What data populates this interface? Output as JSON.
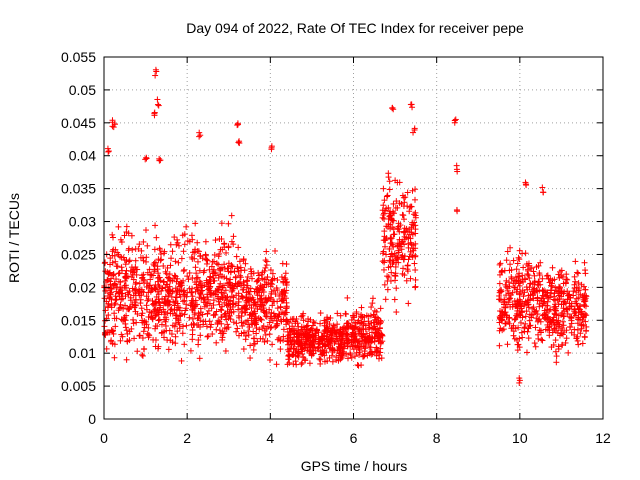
{
  "chart_data": {
    "type": "scatter",
    "title": "Day 094 of 2022, Rate Of TEC Index for receiver pepe",
    "xlabel": "GPS time / hours",
    "ylabel": "ROTI / TECUs",
    "xlim": [
      0,
      12
    ],
    "ylim": [
      0,
      0.055
    ],
    "x_ticks": [
      0,
      2,
      4,
      6,
      8,
      10,
      12
    ],
    "x_tick_labels": [
      "0",
      "2",
      "4",
      "6",
      "8",
      "10",
      "12"
    ],
    "y_ticks": [
      0,
      0.005,
      0.01,
      0.015,
      0.02,
      0.025,
      0.03,
      0.035,
      0.04,
      0.045,
      0.05,
      0.055
    ],
    "y_tick_labels": [
      "0",
      "0.005",
      "0.01",
      "0.015",
      "0.02",
      "0.025",
      "0.03",
      "0.035",
      "0.04",
      "0.045",
      "0.05",
      "0.055"
    ],
    "grid": true,
    "marker": "+",
    "marker_color": "#ff0000",
    "series": [
      {
        "name": "ROTI",
        "segments": [
          {
            "x": [
              0.0,
              1.0
            ],
            "y_center": 0.019,
            "y_spread": 0.012
          },
          {
            "x": [
              1.0,
              2.0
            ],
            "y_center": 0.019,
            "y_spread": 0.012
          },
          {
            "x": [
              2.0,
              3.3
            ],
            "y_center": 0.02,
            "y_spread": 0.012
          },
          {
            "x": [
              3.3,
              4.4
            ],
            "y_center": 0.017,
            "y_spread": 0.01
          },
          {
            "x": [
              4.4,
              5.8
            ],
            "y_center": 0.012,
            "y_spread": 0.005
          },
          {
            "x": [
              5.8,
              6.7
            ],
            "y_center": 0.013,
            "y_spread": 0.006
          },
          {
            "x": [
              6.7,
              7.5
            ],
            "y_center": 0.027,
            "y_spread": 0.012
          },
          {
            "x": [
              9.5,
              10.5
            ],
            "y_center": 0.018,
            "y_spread": 0.01
          },
          {
            "x": [
              10.5,
              11.6
            ],
            "y_center": 0.017,
            "y_spread": 0.009
          }
        ],
        "highlights": [
          {
            "x": 0.1,
            "y": 0.041
          },
          {
            "x": 0.2,
            "y": 0.045
          },
          {
            "x": 0.25,
            "y": 0.0445
          },
          {
            "x": 1.0,
            "y": 0.04
          },
          {
            "x": 1.2,
            "y": 0.046
          },
          {
            "x": 1.25,
            "y": 0.0525
          },
          {
            "x": 1.3,
            "y": 0.048
          },
          {
            "x": 1.35,
            "y": 0.039
          },
          {
            "x": 2.3,
            "y": 0.043
          },
          {
            "x": 3.2,
            "y": 0.0445
          },
          {
            "x": 3.25,
            "y": 0.042
          },
          {
            "x": 4.05,
            "y": 0.0415
          },
          {
            "x": 6.95,
            "y": 0.047
          },
          {
            "x": 7.4,
            "y": 0.0475
          },
          {
            "x": 7.45,
            "y": 0.044
          },
          {
            "x": 8.45,
            "y": 0.045
          },
          {
            "x": 8.5,
            "y": 0.038
          },
          {
            "x": 8.5,
            "y": 0.032
          },
          {
            "x": 10.15,
            "y": 0.0355
          },
          {
            "x": 10.55,
            "y": 0.035
          },
          {
            "x": 10.0,
            "y": 0.006
          }
        ]
      }
    ]
  }
}
